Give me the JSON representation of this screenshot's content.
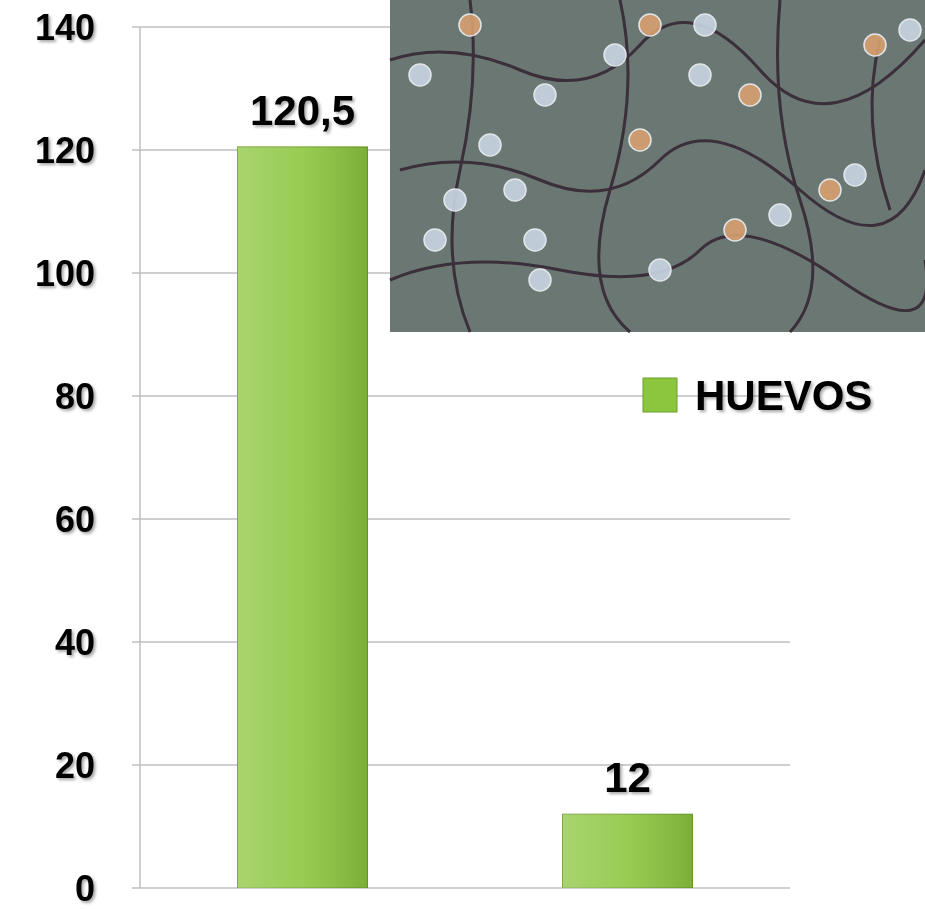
{
  "chart_data": {
    "type": "bar",
    "categories": [
      null,
      null
    ],
    "series": [
      {
        "name": "HUEVOS",
        "color": "#8cc63f",
        "values": [
          120.5,
          12
        ],
        "value_labels": [
          "120,5",
          "12"
        ]
      }
    ],
    "ylim": [
      0,
      140
    ],
    "yticks": [
      0,
      20,
      40,
      60,
      80,
      100,
      120,
      140
    ],
    "grid": true,
    "legend": "right",
    "data_labels": true,
    "tick_labels": "y"
  }
}
